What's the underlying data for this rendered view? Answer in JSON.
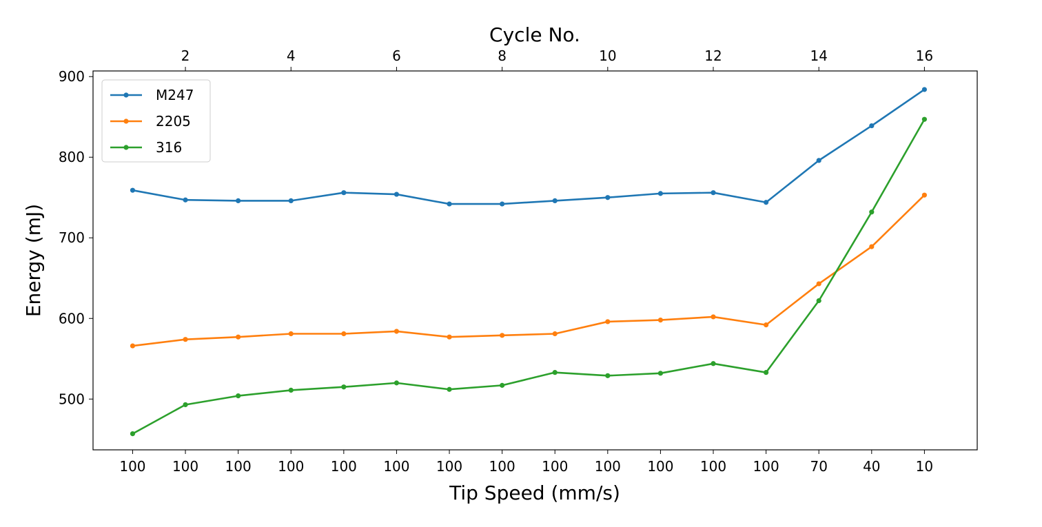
{
  "chart_data": {
    "type": "line",
    "title": "",
    "xlabel": "Tip Speed (mm/s)",
    "top_xlabel": "Cycle No.",
    "ylabel": "Energy (mJ)",
    "x": [
      1,
      2,
      3,
      4,
      5,
      6,
      7,
      8,
      9,
      10,
      11,
      12,
      13,
      14,
      15,
      16
    ],
    "bottom_tick_labels": [
      "100",
      "100",
      "100",
      "100",
      "100",
      "100",
      "100",
      "100",
      "100",
      "100",
      "100",
      "100",
      "100",
      "70",
      "40",
      "10"
    ],
    "top_ticks": [
      2,
      4,
      6,
      8,
      10,
      12,
      14,
      16
    ],
    "top_tick_labels": [
      "2",
      "4",
      "6",
      "8",
      "10",
      "12",
      "14",
      "16"
    ],
    "yticks": [
      500,
      600,
      700,
      800,
      900
    ],
    "ytick_labels": [
      "500",
      "600",
      "700",
      "800",
      "900"
    ],
    "xlim": [
      0.25,
      17.0
    ],
    "ylim": [
      437,
      907
    ],
    "grid": false,
    "legend_position": "top-left",
    "series": [
      {
        "name": "M247",
        "color": "#1f77b4",
        "values": [
          759,
          747,
          746,
          746,
          756,
          754,
          742,
          742,
          746,
          750,
          755,
          756,
          744,
          796,
          839,
          884
        ]
      },
      {
        "name": "2205",
        "color": "#ff7f0e",
        "values": [
          566,
          574,
          577,
          581,
          581,
          584,
          577,
          579,
          581,
          596,
          598,
          602,
          592,
          643,
          689,
          753
        ]
      },
      {
        "name": "316",
        "color": "#2ca02c",
        "values": [
          457,
          493,
          504,
          511,
          515,
          520,
          512,
          517,
          533,
          529,
          532,
          544,
          533,
          622,
          732,
          847
        ]
      }
    ]
  }
}
